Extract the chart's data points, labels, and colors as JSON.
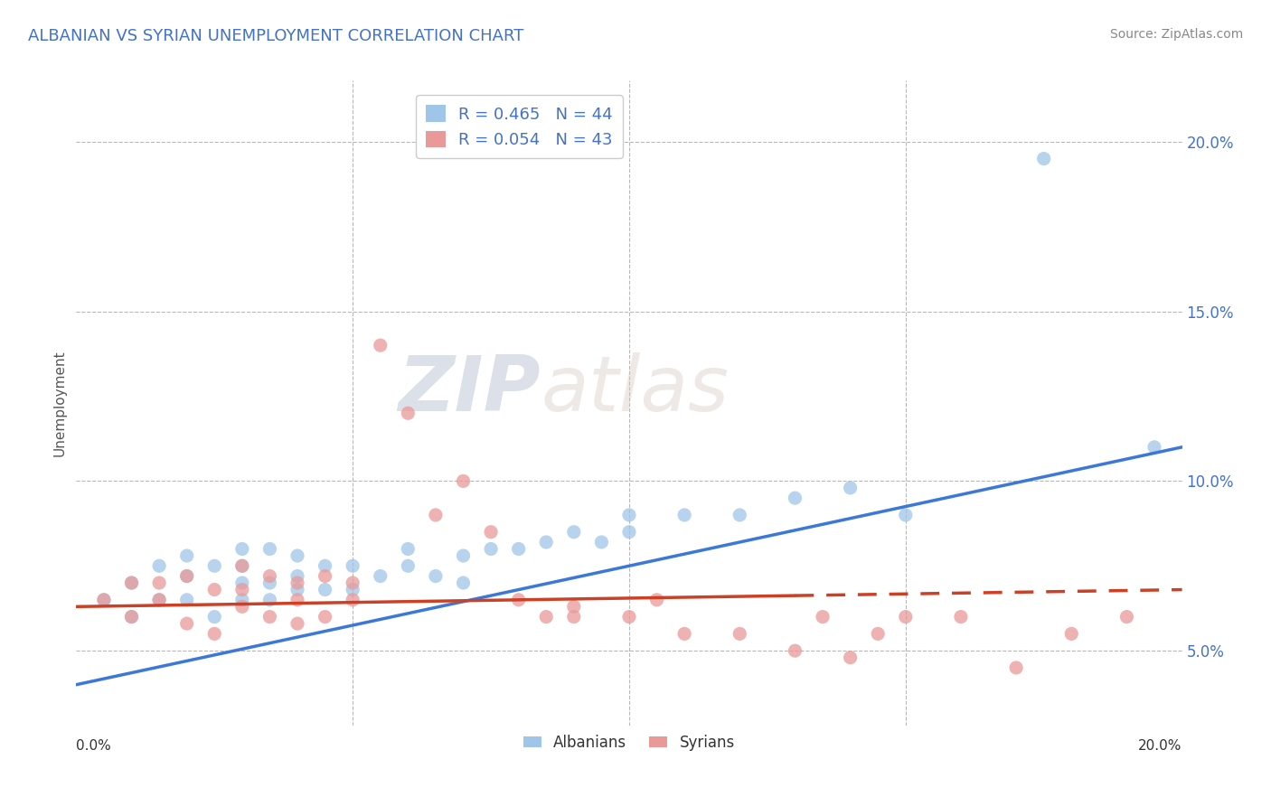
{
  "title": "ALBANIAN VS SYRIAN UNEMPLOYMENT CORRELATION CHART",
  "source": "Source: ZipAtlas.com",
  "ylabel": "Unemployment",
  "xmin": 0.0,
  "xmax": 0.2,
  "ymin": 0.028,
  "ymax": 0.218,
  "yticks": [
    0.05,
    0.1,
    0.15,
    0.2
  ],
  "ytick_labels": [
    "5.0%",
    "10.0%",
    "15.0%",
    "20.0%"
  ],
  "albanian_color": "#9fc5e8",
  "syrian_color": "#ea9999",
  "albanian_line_color": "#3c78d8",
  "syrian_line_color": "#cc4125",
  "legend_R_albanian": "R = 0.465",
  "legend_N_albanian": "N = 44",
  "legend_R_syrian": "R = 0.054",
  "legend_N_syrian": "N = 43",
  "background_color": "#ffffff",
  "grid_color": "#b7b7b7",
  "title_color": "#4472c4",
  "watermark_zip": "ZIP",
  "watermark_atlas": "atlas",
  "alb_line_x0": 0.0,
  "alb_line_y0": 0.04,
  "alb_line_x1": 0.2,
  "alb_line_y1": 0.11,
  "syr_line_x0": 0.0,
  "syr_line_y0": 0.063,
  "syr_line_x1": 0.2,
  "syr_line_y1": 0.068,
  "albanian_x": [
    0.005,
    0.01,
    0.01,
    0.015,
    0.015,
    0.02,
    0.02,
    0.02,
    0.025,
    0.025,
    0.03,
    0.03,
    0.03,
    0.03,
    0.035,
    0.035,
    0.035,
    0.04,
    0.04,
    0.04,
    0.045,
    0.045,
    0.05,
    0.05,
    0.055,
    0.06,
    0.06,
    0.065,
    0.07,
    0.07,
    0.075,
    0.08,
    0.085,
    0.09,
    0.095,
    0.1,
    0.1,
    0.11,
    0.12,
    0.13,
    0.14,
    0.15,
    0.175,
    0.195
  ],
  "albanian_y": [
    0.065,
    0.06,
    0.07,
    0.065,
    0.075,
    0.072,
    0.065,
    0.078,
    0.06,
    0.075,
    0.065,
    0.07,
    0.08,
    0.075,
    0.07,
    0.065,
    0.08,
    0.068,
    0.072,
    0.078,
    0.068,
    0.075,
    0.075,
    0.068,
    0.072,
    0.075,
    0.08,
    0.072,
    0.078,
    0.07,
    0.08,
    0.08,
    0.082,
    0.085,
    0.082,
    0.085,
    0.09,
    0.09,
    0.09,
    0.095,
    0.098,
    0.09,
    0.195,
    0.11
  ],
  "syrian_x": [
    0.005,
    0.01,
    0.01,
    0.015,
    0.015,
    0.02,
    0.02,
    0.025,
    0.025,
    0.03,
    0.03,
    0.03,
    0.035,
    0.035,
    0.04,
    0.04,
    0.04,
    0.045,
    0.045,
    0.05,
    0.05,
    0.055,
    0.06,
    0.065,
    0.07,
    0.075,
    0.08,
    0.085,
    0.09,
    0.09,
    0.1,
    0.105,
    0.11,
    0.12,
    0.13,
    0.135,
    0.14,
    0.145,
    0.15,
    0.16,
    0.17,
    0.18,
    0.19
  ],
  "syrian_y": [
    0.065,
    0.06,
    0.07,
    0.065,
    0.07,
    0.058,
    0.072,
    0.055,
    0.068,
    0.063,
    0.068,
    0.075,
    0.06,
    0.072,
    0.058,
    0.065,
    0.07,
    0.072,
    0.06,
    0.065,
    0.07,
    0.14,
    0.12,
    0.09,
    0.1,
    0.085,
    0.065,
    0.06,
    0.063,
    0.06,
    0.06,
    0.065,
    0.055,
    0.055,
    0.05,
    0.06,
    0.048,
    0.055,
    0.06,
    0.06,
    0.045,
    0.055,
    0.06
  ]
}
